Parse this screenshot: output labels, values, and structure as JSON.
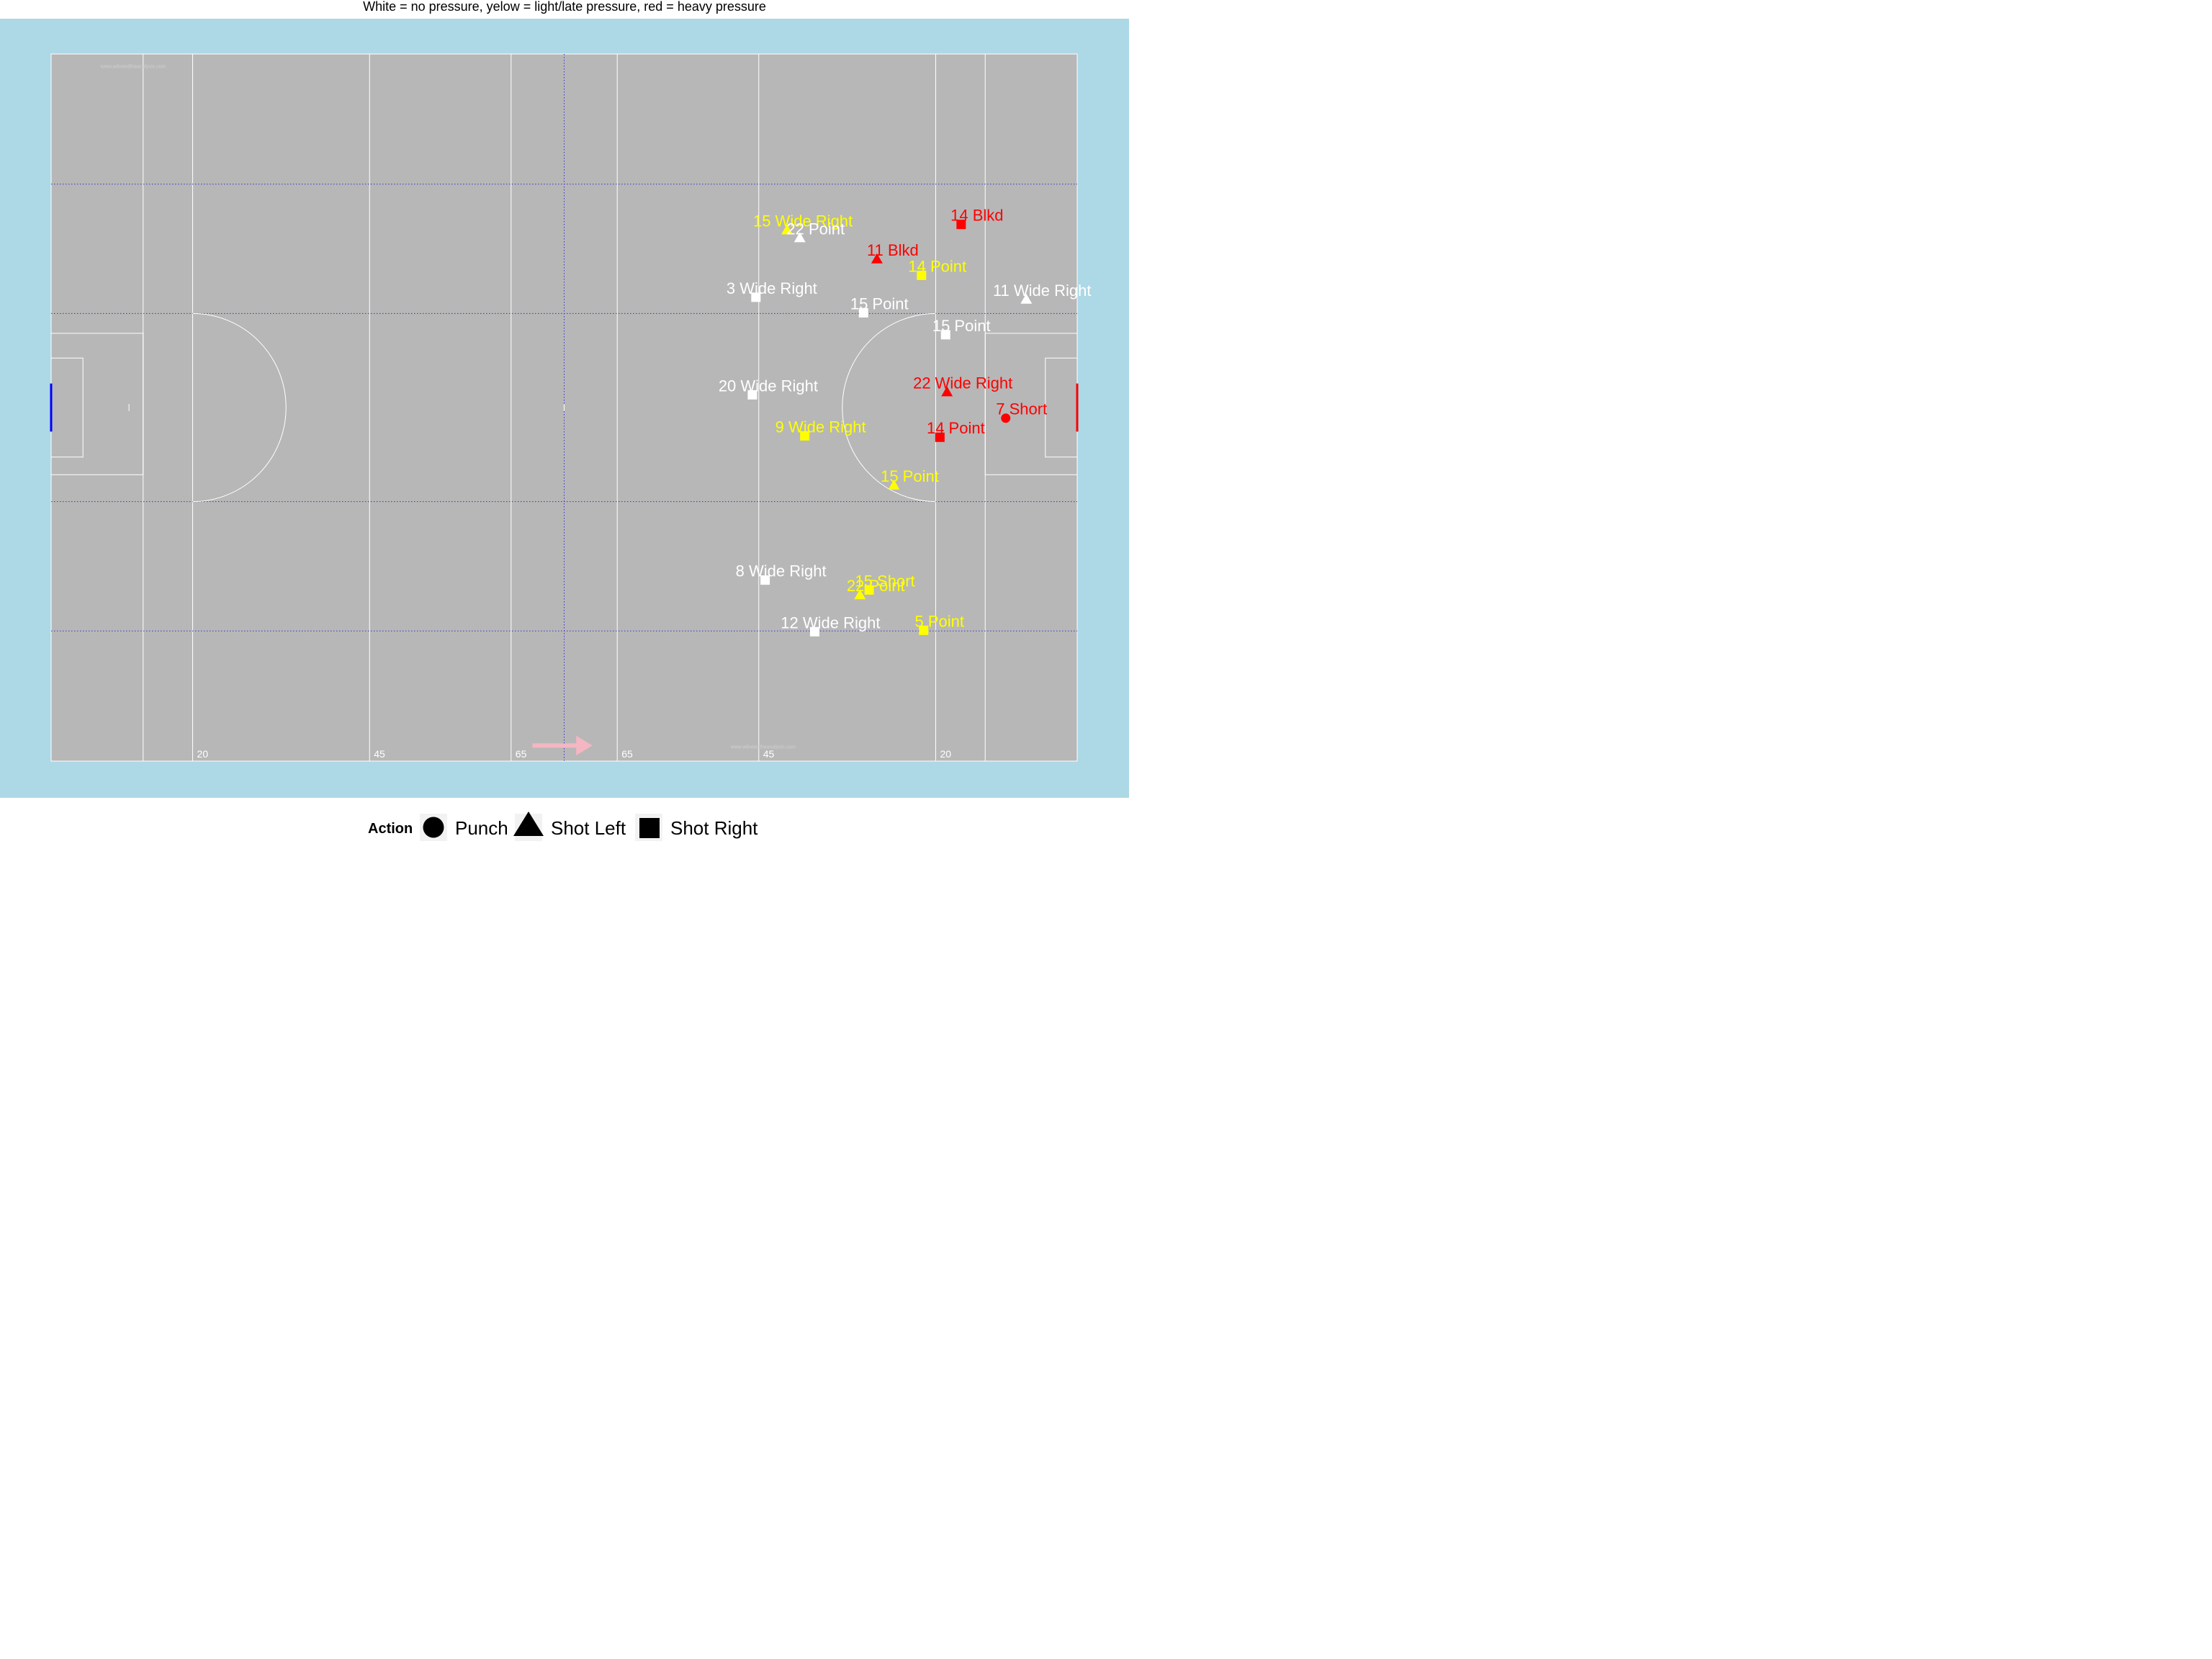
{
  "title": "White = no pressure, yelow = light/late pressure, red = heavy pressure",
  "watermark": "www.wilneedtheanalysis.com",
  "colors": {
    "background": "#add8e6",
    "pitch": "#b7b7b7",
    "lines": "#ffffff",
    "quarter_lines": "#3333cc",
    "arrow": "#f4b6c2",
    "left_goal": "#0000ff",
    "right_goal": "#ff0000",
    "no_pressure": "#ffffff",
    "light_pressure": "#ffff00",
    "heavy_pressure": "#ff0000"
  },
  "pitch_markings": [
    {
      "label": "20"
    },
    {
      "label": "45"
    },
    {
      "label": "65"
    },
    {
      "label": "65"
    },
    {
      "label": "45"
    },
    {
      "label": "20"
    }
  ],
  "legend": {
    "title": "Action",
    "items": [
      {
        "shape": "circle",
        "label": "Punch"
      },
      {
        "shape": "triangle",
        "label": "Shot Left"
      },
      {
        "shape": "square",
        "label": "Shot Right"
      }
    ]
  },
  "chart_data": {
    "type": "scatter",
    "title": "White = no pressure, yelow = light/late pressure, red = heavy pressure",
    "xlim": [
      0,
      145
    ],
    "ylim": [
      0,
      100
    ],
    "grid": false,
    "legend_position": "bottom",
    "points": [
      {
        "label": "15 Wide Right",
        "action": "Shot Left",
        "pressure": "light",
        "x": 104.0,
        "y": 75.1
      },
      {
        "label": "22 Point",
        "action": "Shot Left",
        "pressure": "none",
        "x": 105.8,
        "y": 74.0
      },
      {
        "label": "11 Blkd",
        "action": "Shot Left",
        "pressure": "heavy",
        "x": 116.7,
        "y": 71.0
      },
      {
        "label": "14 Blkd",
        "action": "Shot Right",
        "pressure": "heavy",
        "x": 128.6,
        "y": 75.9
      },
      {
        "label": "14 Point",
        "action": "Shot Right",
        "pressure": "light",
        "x": 123.0,
        "y": 68.7
      },
      {
        "label": "3 Wide Right",
        "action": "Shot Right",
        "pressure": "none",
        "x": 99.6,
        "y": 65.6
      },
      {
        "label": "15 Point",
        "action": "Shot Right",
        "pressure": "none",
        "x": 114.8,
        "y": 63.4
      },
      {
        "label": "11 Wide Right",
        "action": "Shot Left",
        "pressure": "none",
        "x": 137.8,
        "y": 65.3
      },
      {
        "label": "15 Point",
        "action": "Shot Right",
        "pressure": "none",
        "x": 126.4,
        "y": 60.3
      },
      {
        "label": "20 Wide Right",
        "action": "Shot Right",
        "pressure": "none",
        "x": 99.1,
        "y": 51.8
      },
      {
        "label": "22 Wide Right",
        "action": "Shot Left",
        "pressure": "heavy",
        "x": 126.6,
        "y": 52.2
      },
      {
        "label": "7 Short",
        "action": "Punch",
        "pressure": "heavy",
        "x": 134.9,
        "y": 48.5
      },
      {
        "label": "9 Wide Right",
        "action": "Shot Right",
        "pressure": "light",
        "x": 106.5,
        "y": 46.0
      },
      {
        "label": "14 Point",
        "action": "Shot Right",
        "pressure": "heavy",
        "x": 125.6,
        "y": 45.8
      },
      {
        "label": "15 Point",
        "action": "Shot Left",
        "pressure": "light",
        "x": 119.1,
        "y": 39.0
      },
      {
        "label": "8 Wide Right",
        "action": "Shot Right",
        "pressure": "none",
        "x": 100.9,
        "y": 25.6
      },
      {
        "label": "15 Short",
        "action": "Shot Right",
        "pressure": "light",
        "x": 115.6,
        "y": 24.2
      },
      {
        "label": "22 Point",
        "action": "Shot Left",
        "pressure": "light",
        "x": 114.3,
        "y": 23.5
      },
      {
        "label": "5 Point",
        "action": "Shot Right",
        "pressure": "light",
        "x": 123.3,
        "y": 18.5
      },
      {
        "label": "12 Wide Right",
        "action": "Shot Right",
        "pressure": "none",
        "x": 107.9,
        "y": 18.3
      }
    ]
  }
}
